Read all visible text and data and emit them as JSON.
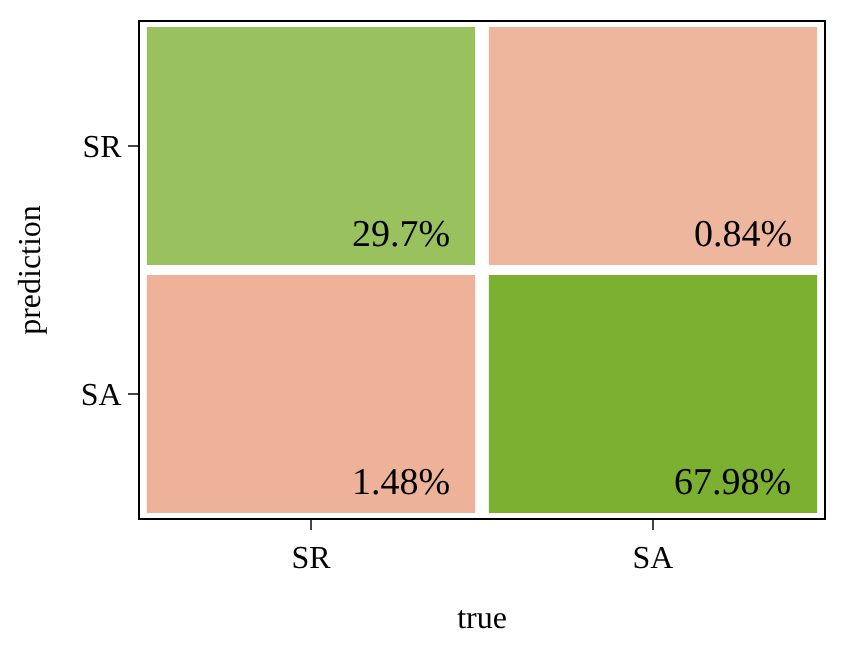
{
  "chart_data": {
    "type": "heatmap",
    "xlabel": "true",
    "ylabel": "prediction",
    "categories": [
      "SR",
      "SA"
    ],
    "y_categories": [
      "SR",
      "SA"
    ],
    "cells": [
      [
        29.7,
        0.84
      ],
      [
        1.48,
        67.98
      ]
    ],
    "cell_labels": [
      [
        "29.7%",
        "0.84%"
      ],
      [
        "1.48%",
        "67.98%"
      ]
    ],
    "colors": [
      "#7cb030",
      "#d95319",
      "#d95319",
      "#7cb030"
    ]
  }
}
